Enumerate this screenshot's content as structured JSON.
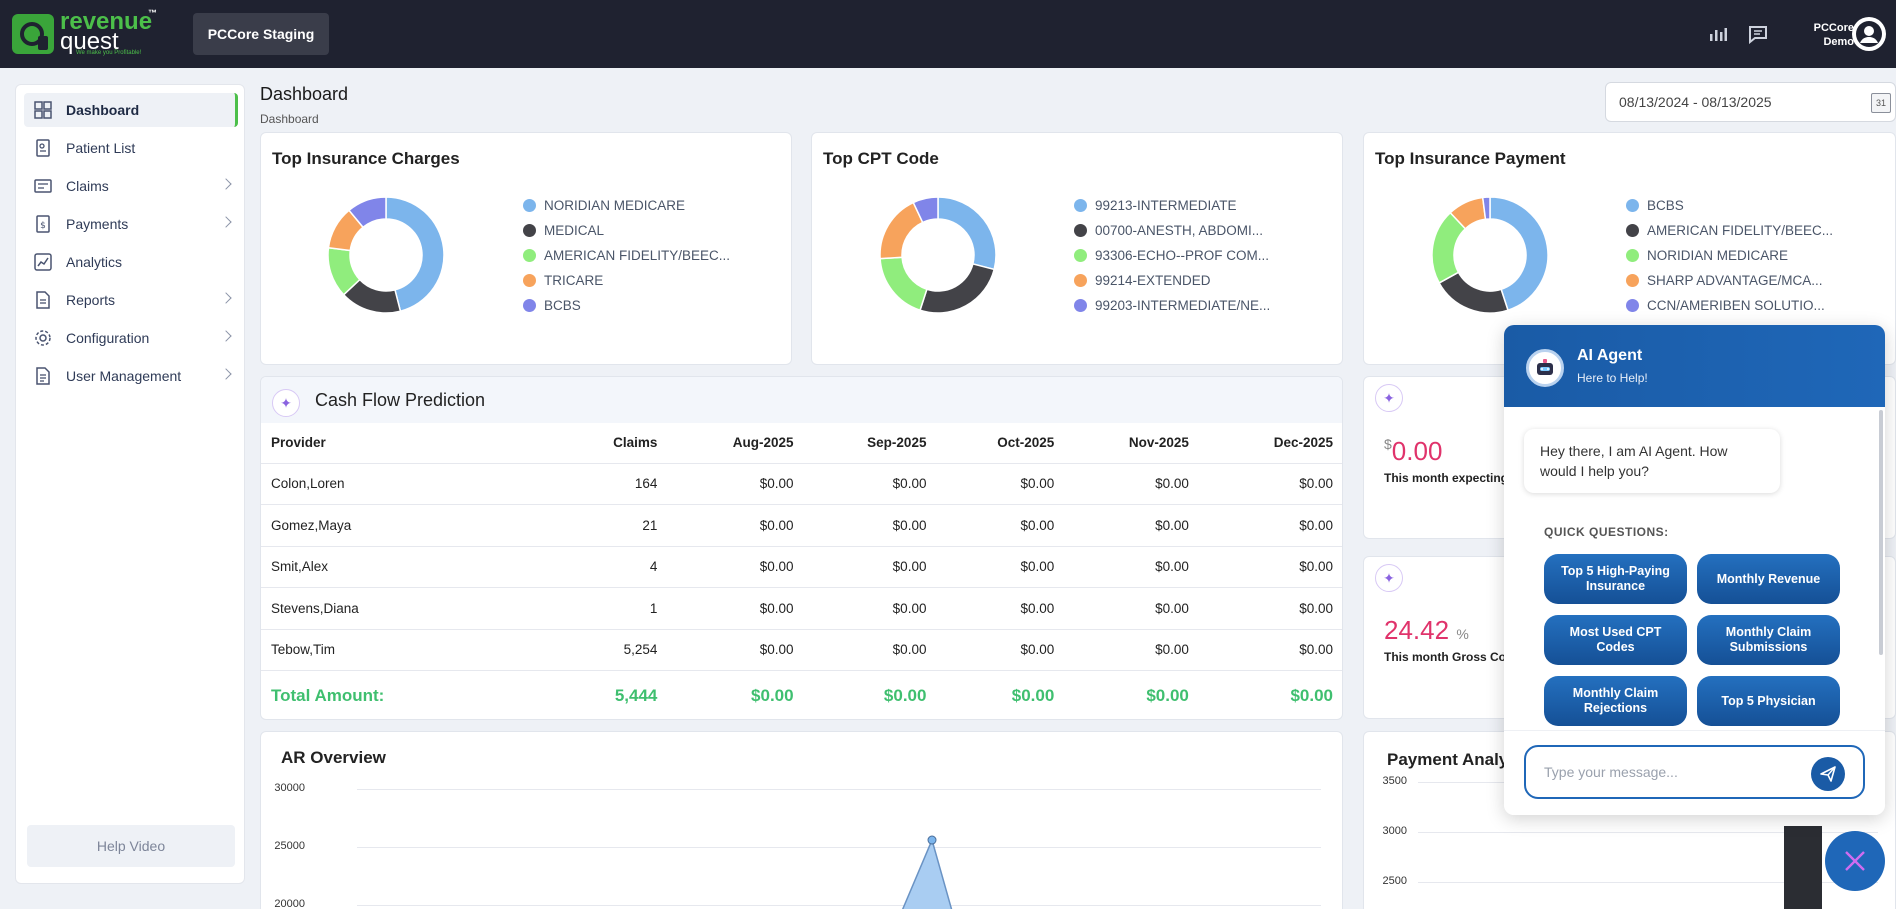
{
  "topbar": {
    "logo_line1": "revenue",
    "logo_line2": "quest",
    "logo_tm": "™",
    "logo_tagline": "We make you Profitable!",
    "environment": "PCCore Staging",
    "user_line1": "PCCore",
    "user_line2": "Demo"
  },
  "sidebar": {
    "items": [
      {
        "label": "Dashboard",
        "icon": "dashboard-icon"
      },
      {
        "label": "Patient List",
        "icon": "patient-list-icon"
      },
      {
        "label": "Claims",
        "icon": "claims-icon"
      },
      {
        "label": "Payments",
        "icon": "payments-icon"
      },
      {
        "label": "Analytics",
        "icon": "analytics-icon"
      },
      {
        "label": "Reports",
        "icon": "reports-icon"
      },
      {
        "label": "Configuration",
        "icon": "gear-icon"
      },
      {
        "label": "User Management",
        "icon": "user-management-icon"
      }
    ],
    "help_video": "Help Video"
  },
  "header": {
    "title": "Dashboard",
    "breadcrumb": "Dashboard",
    "date_range": "08/13/2024 - 08/13/2025",
    "calendar_day": "31"
  },
  "charts": {
    "insurance_charges": {
      "title": "Top Insurance Charges",
      "legend": [
        "NORIDIAN MEDICARE",
        "MEDICAL",
        "AMERICAN FIDELITY/BEEC...",
        "TRICARE",
        "BCBS"
      ]
    },
    "cpt_code": {
      "title": "Top CPT Code",
      "legend": [
        "99213-INTERMEDIATE",
        "00700-ANESTH, ABDOMI...",
        "93306-ECHO--PROF COM...",
        "99214-EXTENDED",
        "99203-INTERMEDIATE/NE..."
      ]
    },
    "insurance_payment": {
      "title": "Top Insurance Payment",
      "legend": [
        "BCBS",
        "AMERICAN FIDELITY/BEEC...",
        "NORIDIAN MEDICARE",
        "SHARP ADVANTAGE/MCA...",
        "CCN/AMERIBEN SOLUTIO..."
      ]
    }
  },
  "chart_data": [
    {
      "type": "pie",
      "title": "Top Insurance Charges",
      "labels": [
        "NORIDIAN MEDICARE",
        "MEDICAL",
        "AMERICAN FIDELITY/BEEC...",
        "TRICARE",
        "BCBS"
      ],
      "values": [
        46,
        17,
        14,
        12,
        11
      ],
      "colors": [
        "#7cb5ec",
        "#434348",
        "#90ed7d",
        "#f7a35c",
        "#8085e9"
      ]
    },
    {
      "type": "pie",
      "title": "Top CPT Code",
      "labels": [
        "99213-INTERMEDIATE",
        "00700-ANESTH, ABDOMI...",
        "93306-ECHO--PROF COM...",
        "99214-EXTENDED",
        "99203-INTERMEDIATE/NE..."
      ],
      "values": [
        29,
        26,
        19,
        19,
        7
      ],
      "colors": [
        "#7cb5ec",
        "#434348",
        "#90ed7d",
        "#f7a35c",
        "#8085e9"
      ]
    },
    {
      "type": "pie",
      "title": "Top Insurance Payment",
      "labels": [
        "BCBS",
        "AMERICAN FIDELITY/BEEC...",
        "NORIDIAN MEDICARE",
        "SHARP ADVANTAGE/MCA...",
        "CCN/AMERIBEN SOLUTIO..."
      ],
      "values": [
        45,
        22,
        21,
        10,
        2
      ],
      "colors": [
        "#7cb5ec",
        "#434348",
        "#90ed7d",
        "#f7a35c",
        "#8085e9"
      ]
    },
    {
      "type": "line",
      "title": "AR Overview",
      "y_ticks": [
        30000,
        25000,
        20000
      ],
      "ylim": [
        20000,
        30000
      ],
      "points_visible": [
        {
          "y": 25600
        }
      ],
      "color": "#7cb5ec"
    },
    {
      "type": "line",
      "title": "Payment Analy",
      "y_ticks": [
        3500,
        3000,
        2500
      ]
    }
  ],
  "cashflow": {
    "title": "Cash Flow Prediction",
    "headers": [
      "Provider",
      "Claims",
      "Aug-2025",
      "Sep-2025",
      "Oct-2025",
      "Nov-2025",
      "Dec-2025"
    ],
    "rows": [
      [
        "Colon,Loren",
        "164",
        "$0.00",
        "$0.00",
        "$0.00",
        "$0.00",
        "$0.00"
      ],
      [
        "Gomez,Maya",
        "21",
        "$0.00",
        "$0.00",
        "$0.00",
        "$0.00",
        "$0.00"
      ],
      [
        "Smit,Alex",
        "4",
        "$0.00",
        "$0.00",
        "$0.00",
        "$0.00",
        "$0.00"
      ],
      [
        "Stevens,Diana",
        "1",
        "$0.00",
        "$0.00",
        "$0.00",
        "$0.00",
        "$0.00"
      ],
      [
        "Tebow,Tim",
        "5,254",
        "$0.00",
        "$0.00",
        "$0.00",
        "$0.00",
        "$0.00"
      ]
    ],
    "total": [
      "Total Amount:",
      "5,444",
      "$0.00",
      "$0.00",
      "$0.00",
      "$0.00",
      "$0.00"
    ]
  },
  "kpi": {
    "expecting": {
      "currency": "$",
      "value": "0.00",
      "label": "This month expecting"
    },
    "gross": {
      "value": "24.42",
      "unit": "%",
      "label": "This month Gross Coll"
    }
  },
  "ai_agent": {
    "title": "AI Agent",
    "subtitle": "Here to Help!",
    "greeting": "Hey there, I am AI Agent. How would I help you?",
    "quick_title": "QUICK QUESTIONS:",
    "quick_questions": [
      "Top 5 High-Paying Insurance",
      "Monthly Revenue",
      "Most Used CPT Codes",
      "Monthly Claim Submissions",
      "Monthly Claim Rejections",
      "Top 5 Physician"
    ],
    "input_placeholder": "Type your message..."
  }
}
